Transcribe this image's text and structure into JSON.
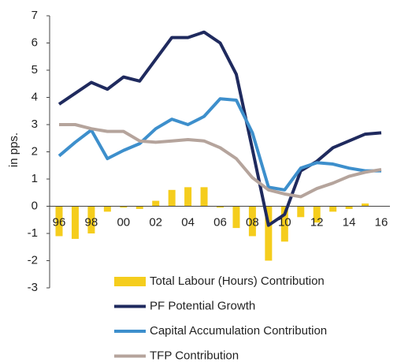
{
  "chart_data": {
    "type": "combo",
    "ylabel": "in pps.",
    "categories": [
      "96",
      null,
      "98",
      null,
      "00",
      null,
      "02",
      null,
      "04",
      null,
      "06",
      null,
      "08",
      null,
      "10",
      null,
      "12",
      null,
      "14",
      null,
      "16"
    ],
    "ylim": [
      -3,
      7
    ],
    "yticks": [
      -3,
      -2,
      -1,
      0,
      1,
      2,
      3,
      4,
      5,
      6,
      7
    ],
    "series": [
      {
        "name": "Total Labour (Hours) Contribution",
        "type": "bar",
        "color": "#f5cd1d",
        "values": [
          -1.1,
          -1.2,
          -1.0,
          -0.2,
          -0.05,
          -0.1,
          0.2,
          0.6,
          0.7,
          0.7,
          -0.05,
          -0.8,
          -1.1,
          -2.0,
          -1.3,
          -0.4,
          -0.6,
          -0.2,
          -0.1,
          0.1,
          0.0
        ]
      },
      {
        "name": "PF Potential Growth",
        "type": "line",
        "color": "#1f2a5e",
        "values": [
          3.75,
          4.15,
          4.55,
          4.3,
          4.75,
          4.6,
          5.4,
          6.2,
          6.2,
          6.4,
          6.0,
          4.85,
          2.1,
          -0.7,
          -0.3,
          1.3,
          1.65,
          2.15,
          2.4,
          2.65,
          2.7
        ]
      },
      {
        "name": "Capital Accumulation Contribution",
        "type": "line",
        "color": "#3d8fcc",
        "values": [
          1.85,
          2.35,
          2.8,
          1.75,
          2.05,
          2.3,
          2.85,
          3.2,
          3.0,
          3.3,
          3.95,
          3.9,
          2.7,
          0.7,
          0.6,
          1.4,
          1.6,
          1.55,
          1.4,
          1.3,
          1.3
        ]
      },
      {
        "name": "TFP Contribution",
        "type": "line",
        "color": "#b5a49c",
        "values": [
          3.0,
          3.0,
          2.85,
          2.75,
          2.75,
          2.4,
          2.35,
          2.4,
          2.45,
          2.4,
          2.15,
          1.75,
          1.05,
          0.6,
          0.45,
          0.35,
          0.65,
          0.85,
          1.1,
          1.25,
          1.35
        ]
      }
    ]
  }
}
